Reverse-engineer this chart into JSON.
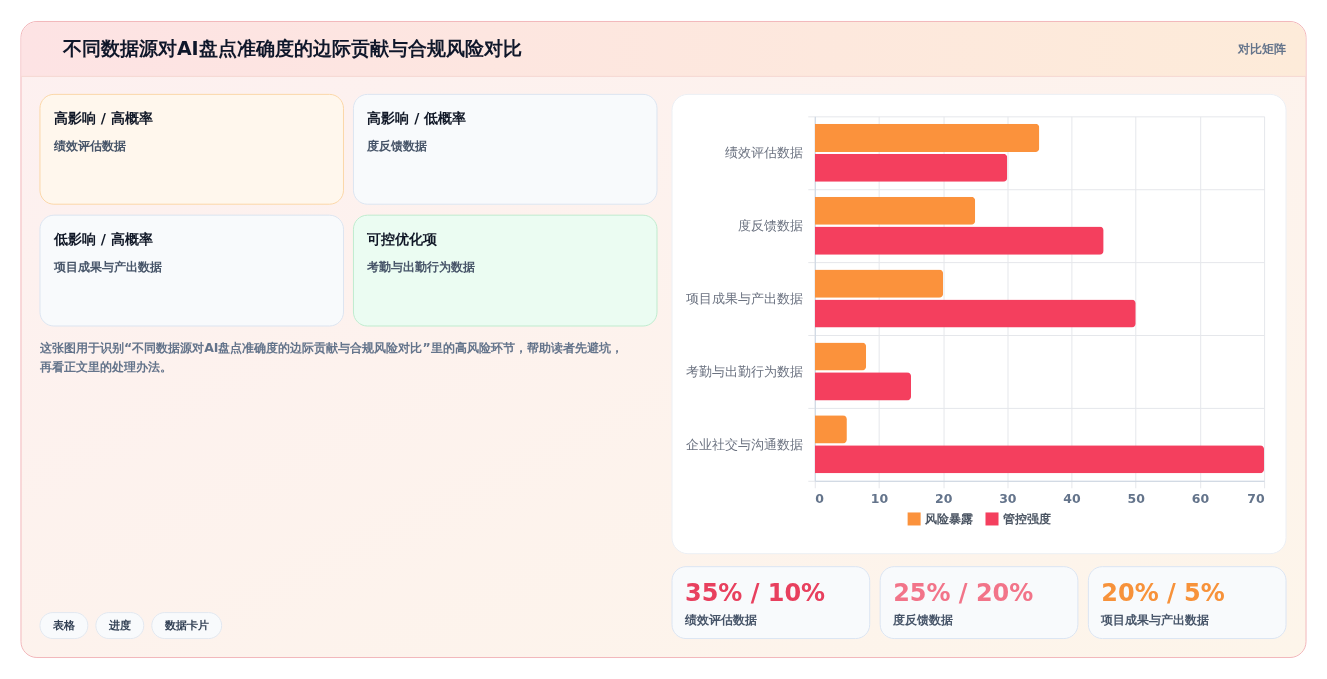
{
  "chart_data": [
    {
      "type": "other",
      "title": "不同数据源对AI盘点准确度的边际贡献与合规风险对比",
      "annotations": [
        "对比矩阵"
      ]
    },
    {
      "type": "other",
      "title": "高影响 / 高概率",
      "subtitle": "绩效评估数据"
    },
    {
      "type": "other",
      "title": "高影响 / 低概率",
      "subtitle": "度反馈数据"
    },
    {
      "type": "other",
      "title": "低影响 / 高概率",
      "subtitle": "项目成果与产出数据"
    },
    {
      "type": "other",
      "title": "可控优化项",
      "subtitle": "考勤与出勤行为数据"
    },
    {
      "type": "other",
      "annotations": [
        "这张图用于识别“不同数据源对AI盘点准确度的边际贡献与合规风险对比”里的高风险环节，帮助读者先避坑，再看正文里的处理办法。"
      ]
    },
    {
      "type": "other",
      "annotations": [
        "表格",
        "进度",
        "数据卡片"
      ]
    },
    {
      "type": "bar",
      "orientation": "horizontal",
      "categories": [
        "绩效评估数据",
        "度反馈数据",
        "项目成果与产出数据",
        "考勤与出勤行为数据",
        "企业社交与沟通数据"
      ],
      "series": [
        {
          "name": "风险暴露",
          "color": "#fb923c",
          "values": [
            35,
            25,
            20,
            8,
            5
          ]
        },
        {
          "name": "管控强度",
          "color": "#f43f5e",
          "values": [
            30,
            45,
            50,
            15,
            70
          ]
        }
      ],
      "xlim": [
        0,
        70
      ],
      "xticks": [
        0,
        10,
        20,
        30,
        40,
        50,
        60,
        70
      ],
      "grid": true,
      "legend": "bottom"
    },
    {
      "type": "other",
      "title": "35% / 10%",
      "subtitle": "绩效评估数据"
    },
    {
      "type": "other",
      "title": "25% / 20%",
      "subtitle": "度反馈数据"
    },
    {
      "type": "other",
      "title": "20% / 5%",
      "subtitle": "项目成果与产出数据"
    }
  ]
}
